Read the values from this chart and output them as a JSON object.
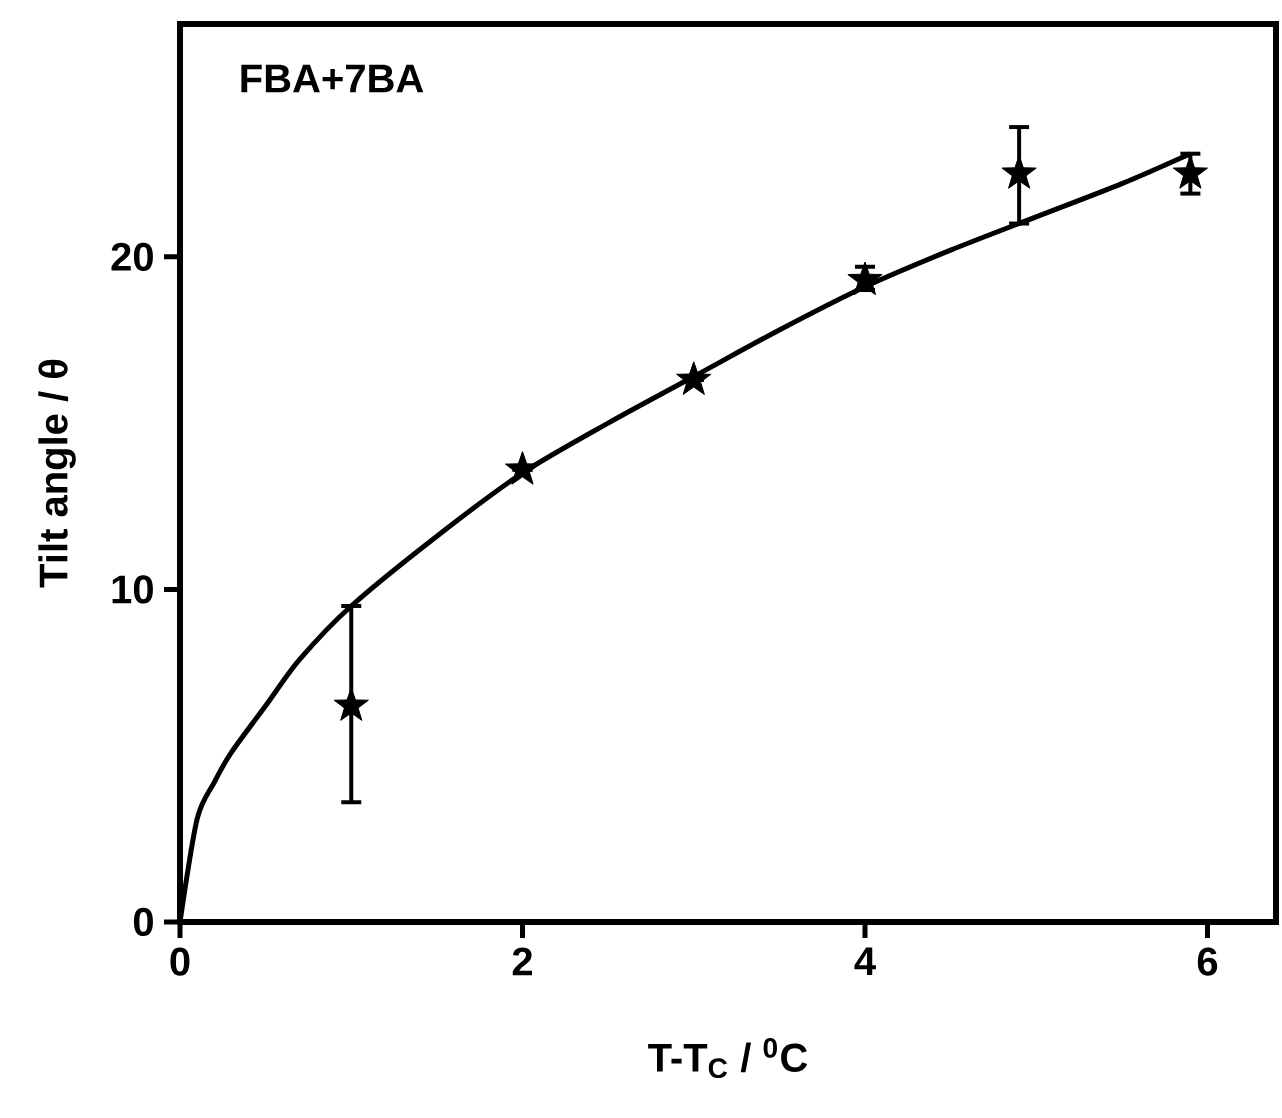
{
  "chart_data": {
    "type": "scatter",
    "xlabel": "T-T$_{C}$ / $^{0}$C",
    "ylabel": "Tilt angle / θ",
    "annotations": [
      "FBA+7BA"
    ],
    "xlim": [
      0,
      6.4
    ],
    "ylim": [
      0,
      27
    ],
    "xticks": [
      0,
      2,
      4,
      6
    ],
    "yticks": [
      0,
      10,
      20
    ],
    "grid": false,
    "series": [
      {
        "color": "#000000",
        "marker": "star",
        "x": [
          1,
          2,
          3,
          4,
          4.9,
          5.9
        ],
        "values": [
          6.5,
          13.6,
          16.3,
          19.3,
          22.5,
          22.5
        ],
        "errors": [
          [
            3.6,
            9.5
          ],
          null,
          null,
          [
            19.0,
            19.7
          ],
          [
            21.0,
            23.9
          ],
          [
            21.9,
            23.1
          ]
        ]
      },
      {
        "type": "line",
        "color": "#000000",
        "marker": "none",
        "line_style": "solid",
        "x": [
          0,
          0.1,
          0.2,
          0.3,
          0.5,
          0.7,
          1,
          1.5,
          2,
          2.5,
          3,
          3.5,
          4,
          4.5,
          5,
          5.5,
          5.9
        ],
        "values": [
          0,
          3.1,
          4.2,
          5.1,
          6.5,
          7.9,
          9.5,
          11.6,
          13.5,
          15.0,
          16.4,
          17.8,
          19.1,
          20.2,
          21.2,
          22.2,
          23.1
        ]
      }
    ]
  }
}
